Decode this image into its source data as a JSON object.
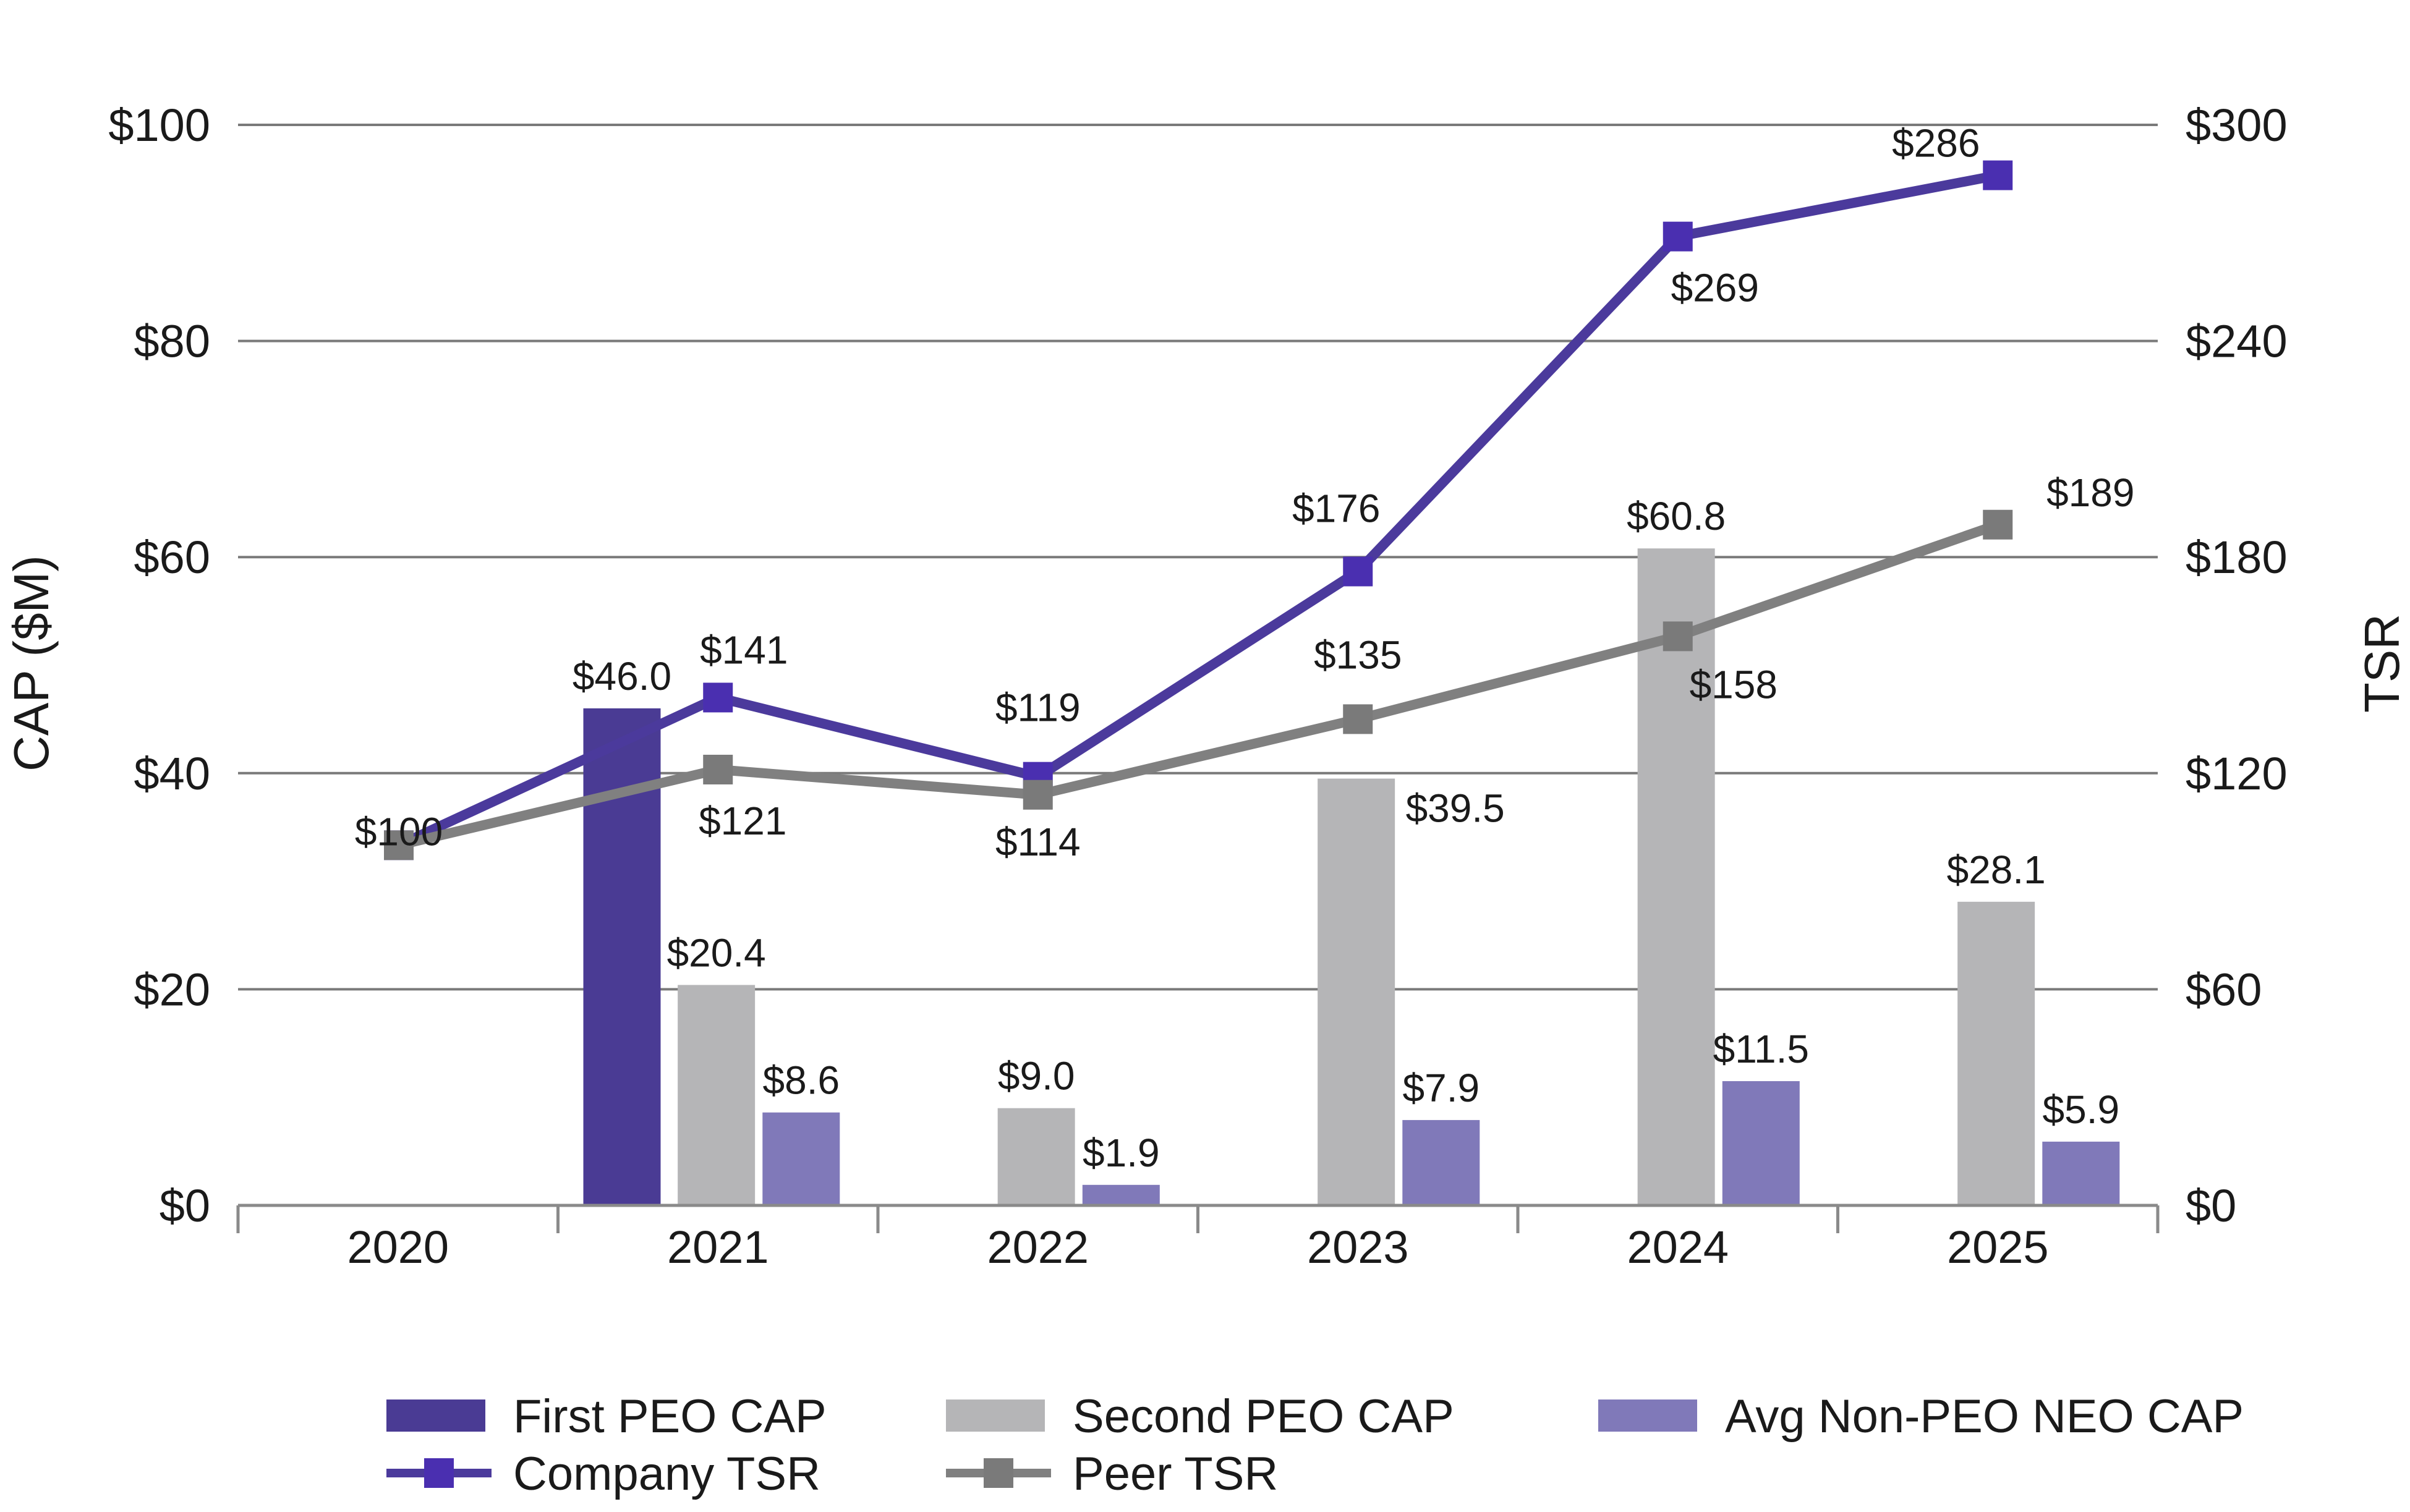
{
  "chart_data": {
    "type": "bar",
    "categories": [
      "2020",
      "2021",
      "2022",
      "2023",
      "2024",
      "2025"
    ],
    "xlabel": "",
    "ylabel": "CAP ($M)",
    "y2label": "TSR",
    "ylim": [
      0,
      100
    ],
    "y2lim": [
      0,
      300
    ],
    "y_ticks": [
      "$0",
      "$20",
      "$40",
      "$60",
      "$80",
      "$100"
    ],
    "y2_ticks": [
      "$0",
      "$60",
      "$120",
      "$180",
      "$240",
      "$300"
    ],
    "grid": true,
    "legend_position": "bottom",
    "bar_series": [
      {
        "name": "First PEO CAP",
        "color": "#4a3b94",
        "values": [
          null,
          46.0,
          null,
          null,
          null,
          null
        ],
        "labels": [
          null,
          "$46.0",
          null,
          null,
          null,
          null
        ]
      },
      {
        "name": "Second PEO CAP",
        "color": "#b5b5b7",
        "values": [
          null,
          20.4,
          9.0,
          39.5,
          60.8,
          28.1
        ],
        "labels": [
          null,
          "$20.4",
          "$9.0",
          "$39.5",
          "$60.8",
          "$28.1"
        ]
      },
      {
        "name": "Avg Non-PEO NEO CAP",
        "color": "#8079b9",
        "values": [
          null,
          8.6,
          1.9,
          7.9,
          11.5,
          5.9
        ],
        "labels": [
          null,
          "$8.6",
          "$1.9",
          "$7.9",
          "$11.5",
          "$5.9"
        ]
      }
    ],
    "line_series": [
      {
        "name": "Company TSR",
        "color": "#4b3a9c",
        "marker_color": "#4a2fb0",
        "axis": "right",
        "values": [
          100,
          141,
          119,
          176,
          269,
          286
        ],
        "labels": [
          "$100",
          "$141",
          "$119",
          "$176",
          "$269",
          "$286"
        ]
      },
      {
        "name": "Peer TSR",
        "color": "#808080",
        "marker_color": "#7a7a7a",
        "axis": "right",
        "values": [
          100,
          121,
          114,
          135,
          158,
          189
        ],
        "labels": [
          "",
          "$121",
          "$114",
          "$135",
          "$158",
          "$189"
        ]
      }
    ]
  }
}
